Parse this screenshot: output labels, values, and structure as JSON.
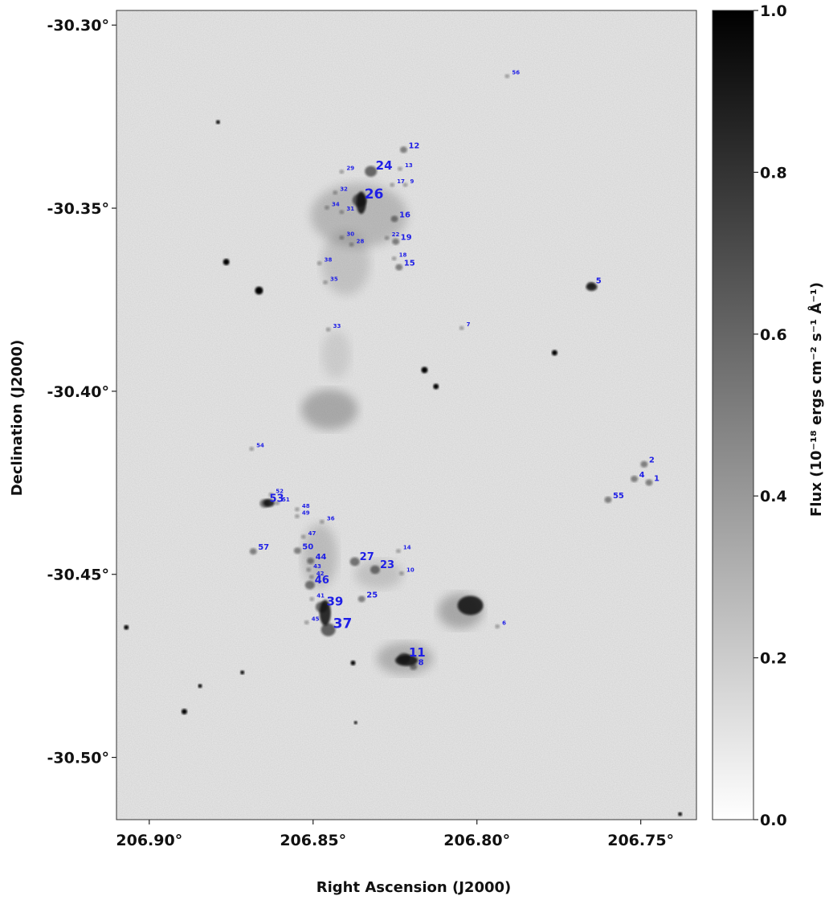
{
  "chart_data": {
    "type": "image",
    "title": "",
    "xlabel": "Right Ascension (J2000)",
    "ylabel": "Declination (J2000)",
    "x_unit": "deg",
    "y_unit": "deg",
    "xlim": [
      206.91,
      206.733
    ],
    "ylim": [
      -30.517,
      -30.296
    ],
    "x_ticks": [
      206.9,
      206.85,
      206.8,
      206.75
    ],
    "x_tick_labels": [
      "206.90°",
      "206.85°",
      "206.80°",
      "206.75°"
    ],
    "y_ticks": [
      -30.3,
      -30.35,
      -30.4,
      -30.45,
      -30.5
    ],
    "y_tick_labels": [
      "-30.30°",
      "-30.35°",
      "-30.40°",
      "-30.45°",
      "-30.50°"
    ],
    "colormap": "gray_r",
    "colorbar": {
      "label": "Flux (10⁻¹⁸ ergs cm⁻² s⁻¹ Å⁻¹)",
      "range": [
        0.0,
        1.0
      ],
      "ticks": [
        0.0,
        0.2,
        0.4,
        0.6,
        0.8,
        1.0
      ],
      "tick_labels": [
        "0.0",
        "0.2",
        "0.4",
        "0.6",
        "0.8",
        "1.0"
      ]
    },
    "label_color": "#1f1fe6",
    "sources": [
      {
        "id": "1",
        "ra": 206.746,
        "dec": -30.4245,
        "size": "small"
      },
      {
        "id": "2",
        "ra": 206.7475,
        "dec": -30.4195,
        "size": "small"
      },
      {
        "id": "4",
        "ra": 206.7505,
        "dec": -30.4235,
        "size": "small"
      },
      {
        "id": "5",
        "ra": 206.7637,
        "dec": -30.3705,
        "size": "small"
      },
      {
        "id": "6",
        "ra": 206.7923,
        "dec": -30.4638,
        "size": "tiny"
      },
      {
        "id": "7",
        "ra": 206.8032,
        "dec": -30.3823,
        "size": "tiny"
      },
      {
        "id": "8",
        "ra": 206.8179,
        "dec": -30.4748,
        "size": "small"
      },
      {
        "id": "9",
        "ra": 206.8204,
        "dec": -30.3432,
        "size": "tiny"
      },
      {
        "id": "10",
        "ra": 206.8215,
        "dec": -30.4493,
        "size": "tiny"
      },
      {
        "id": "11",
        "ra": 206.8208,
        "dec": -30.4725,
        "size": "large"
      },
      {
        "id": "12",
        "ra": 206.8209,
        "dec": -30.3336,
        "size": "small"
      },
      {
        "id": "14",
        "ra": 206.8225,
        "dec": -30.4432,
        "size": "tiny"
      },
      {
        "id": "15",
        "ra": 206.8223,
        "dec": -30.3657,
        "size": "small"
      },
      {
        "id": "16",
        "ra": 206.8237,
        "dec": -30.3525,
        "size": "small"
      },
      {
        "id": "17",
        "ra": 206.8244,
        "dec": -30.3432,
        "size": "tiny"
      },
      {
        "id": "18",
        "ra": 206.8238,
        "dec": -30.3633,
        "size": "tiny"
      },
      {
        "id": "19",
        "ra": 206.8233,
        "dec": -30.3587,
        "size": "small"
      },
      {
        "id": "22",
        "ra": 206.826,
        "dec": -30.3577,
        "size": "tiny"
      },
      {
        "id": "23",
        "ra": 206.8296,
        "dec": -30.4483,
        "size": "medium"
      },
      {
        "id": "24",
        "ra": 206.8309,
        "dec": -30.3395,
        "size": "large"
      },
      {
        "id": "25",
        "ra": 206.8337,
        "dec": -30.4563,
        "size": "small"
      },
      {
        "id": "26",
        "ra": 206.8343,
        "dec": -30.3474,
        "size": "xlarge"
      },
      {
        "id": "27",
        "ra": 206.8358,
        "dec": -30.4461,
        "size": "medium"
      },
      {
        "id": "28",
        "ra": 206.8368,
        "dec": -30.3595,
        "size": "tiny"
      },
      {
        "id": "29",
        "ra": 206.8398,
        "dec": -30.3396,
        "size": "tiny"
      },
      {
        "id": "30",
        "ra": 206.8398,
        "dec": -30.3576,
        "size": "tiny"
      },
      {
        "id": "31",
        "ra": 206.8398,
        "dec": -30.3506,
        "size": "tiny"
      },
      {
        "id": "32",
        "ra": 206.8418,
        "dec": -30.3453,
        "size": "tiny"
      },
      {
        "id": "33",
        "ra": 206.8439,
        "dec": -30.3827,
        "size": "tiny"
      },
      {
        "id": "34",
        "ra": 206.8443,
        "dec": -30.3494,
        "size": "tiny"
      },
      {
        "id": "35",
        "ra": 206.8448,
        "dec": -30.3698,
        "size": "tiny"
      },
      {
        "id": "36",
        "ra": 206.8458,
        "dec": -30.4352,
        "size": "tiny"
      },
      {
        "id": "37",
        "ra": 206.8439,
        "dec": -30.4647,
        "size": "xlarge"
      },
      {
        "id": "39",
        "ra": 206.8459,
        "dec": -30.4585,
        "size": "large"
      },
      {
        "id": "41",
        "ra": 206.8489,
        "dec": -30.4563,
        "size": "tiny"
      },
      {
        "id": "42",
        "ra": 206.849,
        "dec": -30.4503,
        "size": "tiny"
      },
      {
        "id": "44",
        "ra": 206.8493,
        "dec": -30.4459,
        "size": "small"
      },
      {
        "id": "45",
        "ra": 206.8505,
        "dec": -30.4627,
        "size": "tiny"
      },
      {
        "id": "46",
        "ra": 206.8495,
        "dec": -30.4525,
        "size": "medium"
      },
      {
        "id": "47",
        "ra": 206.8515,
        "dec": -30.4393,
        "size": "tiny"
      },
      {
        "id": "48",
        "ra": 206.8534,
        "dec": -30.4318,
        "size": "tiny"
      },
      {
        "id": "49",
        "ra": 206.8534,
        "dec": -30.4337,
        "size": "tiny"
      },
      {
        "id": "50",
        "ra": 206.8533,
        "dec": -30.4431,
        "size": "small"
      },
      {
        "id": "51",
        "ra": 206.8595,
        "dec": -30.4301,
        "size": "tiny"
      },
      {
        "id": "52",
        "ra": 206.8614,
        "dec": -30.4278,
        "size": "tiny"
      },
      {
        "id": "53",
        "ra": 206.8633,
        "dec": -30.4302,
        "size": "medium"
      },
      {
        "id": "54",
        "ra": 206.8673,
        "dec": -30.4153,
        "size": "tiny"
      },
      {
        "id": "55",
        "ra": 206.7585,
        "dec": -30.4292,
        "size": "small"
      },
      {
        "id": "56",
        "ra": 206.7893,
        "dec": -30.3135,
        "size": "tiny"
      },
      {
        "id": "57",
        "ra": 206.8668,
        "dec": -30.4433,
        "size": "small"
      },
      {
        "id": "38",
        "ra": 206.8466,
        "dec": -30.3646,
        "size": "tiny"
      },
      {
        "id": "43",
        "ra": 206.8499,
        "dec": -30.4483,
        "size": "tiny"
      },
      {
        "id": "13",
        "ra": 206.822,
        "dec": -30.3388,
        "size": "tiny"
      }
    ]
  }
}
